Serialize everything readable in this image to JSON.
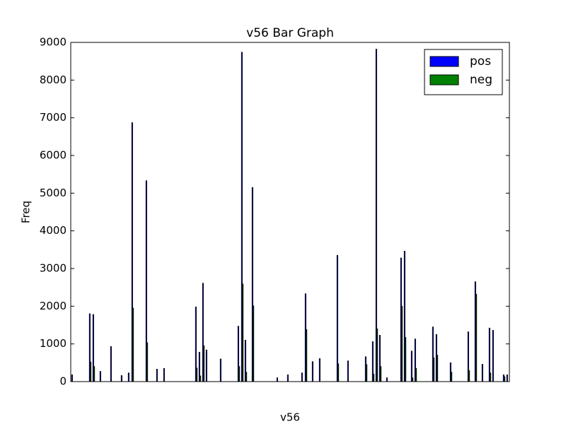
{
  "chart_data": {
    "type": "bar",
    "title": "v56 Bar Graph",
    "x_label": "v56",
    "y_label": "Freq",
    "categories": [
      null,
      null,
      null,
      null,
      null,
      null,
      null,
      null,
      null,
      null,
      null,
      null,
      null,
      null,
      null,
      null,
      null,
      null,
      null,
      null,
      null,
      null,
      null,
      null,
      null,
      null,
      null,
      null,
      null,
      null,
      null,
      null,
      null,
      null,
      null,
      null,
      null,
      null,
      null,
      null,
      null,
      null,
      null,
      null,
      null,
      null,
      null,
      null,
      null,
      null,
      null,
      null,
      null,
      null,
      null,
      null,
      null,
      null,
      null,
      null,
      null,
      null,
      null,
      null,
      null,
      null,
      null,
      null,
      null,
      null,
      null,
      null,
      null,
      null,
      null,
      null,
      null,
      null,
      null,
      null,
      null,
      null,
      null,
      null,
      null,
      null,
      null,
      null,
      null,
      null,
      null,
      null,
      null,
      null,
      null,
      null,
      null,
      null,
      null,
      null,
      null,
      null,
      null,
      null,
      null,
      null,
      null,
      null,
      null,
      null,
      null,
      null,
      null,
      null,
      null,
      null,
      null,
      null,
      null,
      null,
      null,
      null,
      null,
      null
    ],
    "series": [
      {
        "name": "pos",
        "color": "#0000ff",
        "values": [
          180,
          0,
          0,
          0,
          0,
          1800,
          1780,
          0,
          270,
          0,
          0,
          930,
          0,
          0,
          160,
          0,
          230,
          6870,
          0,
          0,
          0,
          5330,
          0,
          0,
          330,
          0,
          350,
          0,
          0,
          0,
          0,
          0,
          0,
          0,
          0,
          1980,
          780,
          2610,
          840,
          0,
          0,
          0,
          600,
          0,
          0,
          0,
          0,
          1470,
          8740,
          1100,
          0,
          5150,
          0,
          0,
          0,
          0,
          0,
          0,
          100,
          0,
          0,
          180,
          0,
          0,
          0,
          230,
          2330,
          0,
          530,
          0,
          610,
          0,
          0,
          0,
          0,
          3350,
          0,
          0,
          550,
          0,
          0,
          0,
          0,
          660,
          0,
          1060,
          8820,
          1230,
          0,
          100,
          0,
          0,
          0,
          3280,
          3460,
          0,
          810,
          1130,
          0,
          0,
          0,
          0,
          1450,
          1250,
          0,
          0,
          0,
          500,
          0,
          0,
          0,
          0,
          1320,
          0,
          2650,
          0,
          460,
          0,
          1420,
          1360,
          0,
          0,
          180,
          180
        ]
      },
      {
        "name": "neg",
        "color": "#008000",
        "values": [
          0,
          0,
          0,
          0,
          0,
          520,
          400,
          0,
          0,
          0,
          0,
          0,
          0,
          0,
          0,
          0,
          0,
          1950,
          0,
          0,
          0,
          1030,
          0,
          0,
          0,
          0,
          0,
          0,
          0,
          0,
          0,
          0,
          0,
          0,
          0,
          360,
          150,
          950,
          0,
          0,
          0,
          0,
          0,
          0,
          0,
          0,
          0,
          400,
          2590,
          250,
          0,
          2010,
          0,
          0,
          0,
          0,
          0,
          0,
          0,
          0,
          0,
          0,
          0,
          0,
          0,
          0,
          1380,
          0,
          0,
          0,
          0,
          0,
          0,
          0,
          0,
          470,
          0,
          0,
          0,
          0,
          0,
          0,
          0,
          450,
          0,
          200,
          1400,
          400,
          0,
          0,
          0,
          0,
          0,
          2000,
          1170,
          0,
          100,
          350,
          0,
          0,
          0,
          0,
          630,
          700,
          0,
          0,
          0,
          250,
          0,
          0,
          0,
          0,
          290,
          0,
          2320,
          0,
          0,
          0,
          230,
          0,
          0,
          0,
          130,
          0
        ]
      }
    ],
    "ylim": [
      0,
      9000
    ],
    "yticks": [
      0,
      1000,
      2000,
      3000,
      4000,
      5000,
      6000,
      7000,
      8000,
      9000
    ],
    "legend": "upper right",
    "grid": false
  }
}
